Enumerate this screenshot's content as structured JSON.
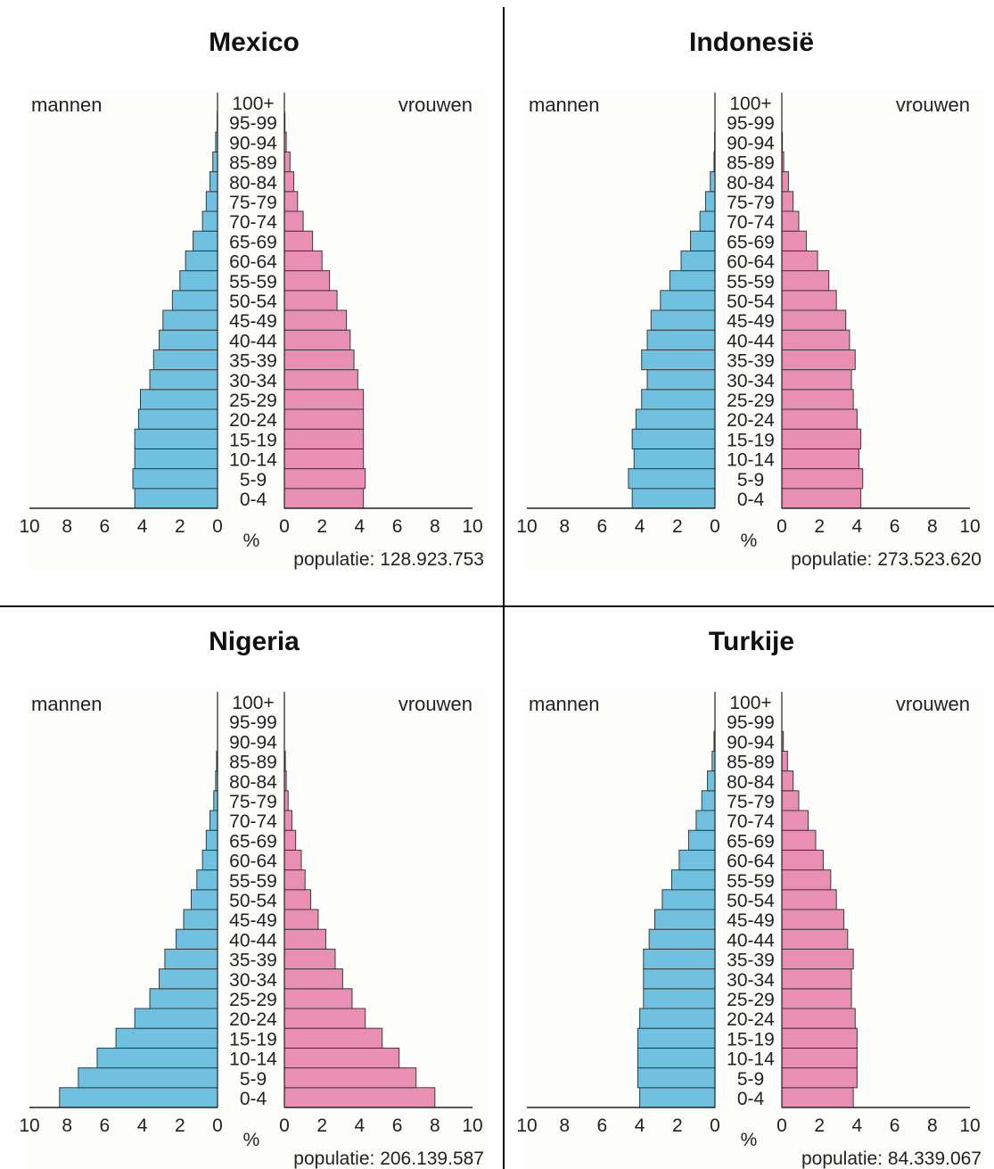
{
  "labels": {
    "men": "mannen",
    "women": "vrouwen",
    "unit": "%",
    "population_prefix": "populatie: "
  },
  "colors": {
    "men": "#6fc1df",
    "women": "#e98fb4",
    "panel_background": "#fdfdfb",
    "divider": "#000000"
  },
  "chart_data": [
    {
      "type": "bar",
      "orientation": "horizontal-mirrored",
      "title": "Mexico",
      "population": "128.923.753",
      "categories": [
        "0-4",
        "5-9",
        "10-14",
        "15-19",
        "20-24",
        "25-29",
        "30-34",
        "35-39",
        "40-44",
        "45-49",
        "50-54",
        "55-59",
        "60-64",
        "65-69",
        "70-74",
        "75-79",
        "80-84",
        "85-89",
        "90-94",
        "95-99",
        "100+"
      ],
      "series": [
        {
          "name": "mannen",
          "values": [
            4.4,
            4.5,
            4.4,
            4.4,
            4.2,
            4.1,
            3.6,
            3.4,
            3.1,
            2.9,
            2.4,
            2.0,
            1.7,
            1.3,
            0.8,
            0.6,
            0.4,
            0.25,
            0.1,
            0.02,
            0.0
          ]
        },
        {
          "name": "vrouwen",
          "values": [
            4.2,
            4.3,
            4.2,
            4.2,
            4.2,
            4.2,
            3.9,
            3.7,
            3.5,
            3.3,
            2.8,
            2.4,
            2.0,
            1.5,
            1.0,
            0.7,
            0.5,
            0.3,
            0.1,
            0.03,
            0.0
          ]
        }
      ],
      "xlim": [
        10,
        0,
        10
      ],
      "xticks": [
        "10",
        "8",
        "6",
        "4",
        "2",
        "0",
        "0",
        "2",
        "4",
        "6",
        "8",
        "10"
      ],
      "xlabel": "%"
    },
    {
      "type": "bar",
      "orientation": "horizontal-mirrored",
      "title": "Indonesië",
      "population": "273.523.620",
      "categories": [
        "0-4",
        "5-9",
        "10-14",
        "15-19",
        "20-24",
        "25-29",
        "30-34",
        "35-39",
        "40-44",
        "45-49",
        "50-54",
        "55-59",
        "60-64",
        "65-69",
        "70-74",
        "75-79",
        "80-84",
        "85-89",
        "90-94",
        "95-99",
        "100+"
      ],
      "series": [
        {
          "name": "mannen",
          "values": [
            4.4,
            4.6,
            4.3,
            4.4,
            4.2,
            3.9,
            3.6,
            3.9,
            3.6,
            3.4,
            2.9,
            2.4,
            1.8,
            1.3,
            0.8,
            0.5,
            0.25,
            0.05,
            0.02,
            0.0,
            0.0
          ]
        },
        {
          "name": "vrouwen",
          "values": [
            4.2,
            4.3,
            4.1,
            4.2,
            4.0,
            3.8,
            3.7,
            3.9,
            3.6,
            3.4,
            2.9,
            2.5,
            1.9,
            1.3,
            0.9,
            0.6,
            0.35,
            0.1,
            0.03,
            0.0,
            0.0
          ]
        }
      ],
      "xlim": [
        10,
        0,
        10
      ],
      "xticks": [
        "10",
        "8",
        "6",
        "4",
        "2",
        "0",
        "0",
        "2",
        "4",
        "6",
        "8",
        "10"
      ],
      "xlabel": "%"
    },
    {
      "type": "bar",
      "orientation": "horizontal-mirrored",
      "title": "Nigeria",
      "population": "206.139.587",
      "categories": [
        "0-4",
        "5-9",
        "10-14",
        "15-19",
        "20-24",
        "25-29",
        "30-34",
        "35-39",
        "40-44",
        "45-49",
        "50-54",
        "55-59",
        "60-64",
        "65-69",
        "70-74",
        "75-79",
        "80-84",
        "85-89",
        "90-94",
        "95-99",
        "100+"
      ],
      "series": [
        {
          "name": "mannen",
          "values": [
            8.4,
            7.4,
            6.4,
            5.4,
            4.4,
            3.6,
            3.1,
            2.8,
            2.2,
            1.8,
            1.4,
            1.1,
            0.8,
            0.6,
            0.4,
            0.2,
            0.1,
            0.05,
            0.0,
            0.0,
            0.0
          ]
        },
        {
          "name": "vrouwen",
          "values": [
            8.0,
            7.0,
            6.1,
            5.2,
            4.3,
            3.6,
            3.1,
            2.7,
            2.2,
            1.8,
            1.4,
            1.1,
            0.9,
            0.6,
            0.4,
            0.2,
            0.1,
            0.05,
            0.0,
            0.0,
            0.0
          ]
        }
      ],
      "xlim": [
        10,
        0,
        10
      ],
      "xticks": [
        "10",
        "8",
        "6",
        "4",
        "2",
        "0",
        "0",
        "2",
        "4",
        "6",
        "8",
        "10"
      ],
      "xlabel": "%"
    },
    {
      "type": "bar",
      "orientation": "horizontal-mirrored",
      "title": "Turkije",
      "population": "84.339.067",
      "categories": [
        "0-4",
        "5-9",
        "10-14",
        "15-19",
        "20-24",
        "25-29",
        "30-34",
        "35-39",
        "40-44",
        "45-49",
        "50-54",
        "55-59",
        "60-64",
        "65-69",
        "70-74",
        "75-79",
        "80-84",
        "85-89",
        "90-94",
        "95-99",
        "100+"
      ],
      "series": [
        {
          "name": "mannen",
          "values": [
            4.0,
            4.1,
            4.1,
            4.1,
            4.0,
            3.8,
            3.8,
            3.8,
            3.5,
            3.2,
            2.8,
            2.3,
            1.9,
            1.4,
            1.0,
            0.7,
            0.4,
            0.15,
            0.05,
            0.0,
            0.0
          ]
        },
        {
          "name": "vrouwen",
          "values": [
            3.8,
            4.0,
            4.0,
            4.0,
            3.9,
            3.7,
            3.7,
            3.8,
            3.5,
            3.3,
            2.9,
            2.6,
            2.2,
            1.8,
            1.4,
            0.9,
            0.6,
            0.3,
            0.08,
            0.0,
            0.0
          ]
        }
      ],
      "xlim": [
        10,
        0,
        10
      ],
      "xticks": [
        "10",
        "8",
        "6",
        "4",
        "2",
        "0",
        "0",
        "2",
        "4",
        "6",
        "8",
        "10"
      ],
      "xlabel": "%"
    }
  ]
}
